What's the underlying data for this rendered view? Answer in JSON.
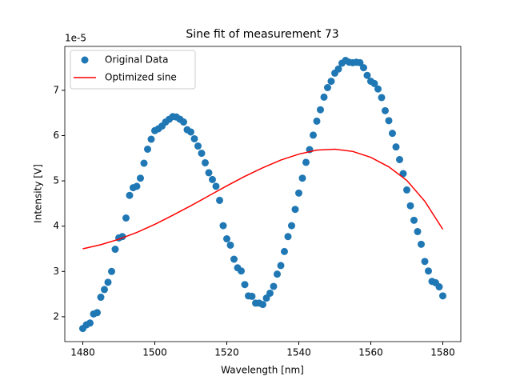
{
  "chart_data": {
    "type": "scatter",
    "title": "Sine fit of measurement 73",
    "xlabel": "Wavelength [nm]",
    "ylabel": "Intensity [V]",
    "offset_text": "1e-5",
    "xlim": [
      1475,
      1585
    ],
    "ylim": [
      1.45,
      7.97
    ],
    "xticks": [
      1480,
      1500,
      1520,
      1540,
      1560,
      1580
    ],
    "yticks": [
      2,
      3,
      4,
      5,
      6,
      7
    ],
    "legend": "upper left",
    "series": [
      {
        "name": "Original Data",
        "type": "scatter",
        "color": "#1f77b4",
        "x": [
          1480,
          1481,
          1482,
          1483,
          1484,
          1485,
          1486,
          1487,
          1488,
          1489,
          1490,
          1491,
          1492,
          1493,
          1494,
          1495,
          1496,
          1497,
          1498,
          1499,
          1500,
          1501,
          1502,
          1503,
          1504,
          1505,
          1506,
          1507,
          1508,
          1509,
          1510,
          1511,
          1512,
          1513,
          1514,
          1515,
          1516,
          1517,
          1518,
          1519,
          1520,
          1521,
          1522,
          1523,
          1524,
          1525,
          1526,
          1527,
          1528,
          1529,
          1530,
          1531,
          1532,
          1533,
          1534,
          1535,
          1536,
          1537,
          1538,
          1539,
          1540,
          1541,
          1542,
          1543,
          1544,
          1545,
          1546,
          1547,
          1548,
          1549,
          1550,
          1551,
          1552,
          1553,
          1554,
          1555,
          1556,
          1557,
          1558,
          1559,
          1560,
          1561,
          1562,
          1563,
          1564,
          1565,
          1566,
          1567,
          1568,
          1569,
          1570,
          1571,
          1572,
          1573,
          1574,
          1575,
          1576,
          1577,
          1578,
          1579,
          1580
        ],
        "values": [
          1.74,
          1.82,
          1.86,
          2.06,
          2.09,
          2.43,
          2.6,
          2.76,
          3.0,
          3.49,
          3.74,
          3.77,
          4.18,
          4.68,
          4.85,
          4.88,
          5.06,
          5.39,
          5.7,
          5.92,
          6.11,
          6.15,
          6.21,
          6.3,
          6.36,
          6.42,
          6.41,
          6.36,
          6.3,
          6.13,
          6.08,
          5.93,
          5.77,
          5.61,
          5.4,
          5.18,
          5.03,
          4.88,
          4.57,
          4.01,
          3.72,
          3.58,
          3.27,
          3.08,
          3.01,
          2.71,
          2.46,
          2.45,
          2.3,
          2.3,
          2.27,
          2.41,
          2.52,
          2.67,
          2.94,
          3.13,
          3.44,
          3.77,
          4.01,
          4.37,
          4.73,
          5.06,
          5.41,
          5.69,
          6.01,
          6.32,
          6.57,
          6.85,
          7.06,
          7.2,
          7.38,
          7.47,
          7.6,
          7.66,
          7.62,
          7.61,
          7.62,
          7.61,
          7.5,
          7.33,
          7.2,
          7.15,
          7.03,
          6.84,
          6.55,
          6.33,
          6.05,
          5.75,
          5.47,
          5.16,
          4.8,
          4.45,
          4.13,
          3.88,
          3.6,
          3.22,
          3.01,
          2.78,
          2.75,
          2.66,
          2.46
        ]
      },
      {
        "name": "Optimized sine",
        "type": "line",
        "color": "#ff0000",
        "x": [
          1480,
          1485,
          1490,
          1495,
          1500,
          1505,
          1510,
          1515,
          1520,
          1525,
          1530,
          1535,
          1540,
          1545,
          1550,
          1555,
          1560,
          1565,
          1570,
          1575,
          1580
        ],
        "values": [
          3.5,
          3.59,
          3.71,
          3.86,
          4.04,
          4.24,
          4.45,
          4.67,
          4.89,
          5.1,
          5.29,
          5.46,
          5.59,
          5.68,
          5.7,
          5.65,
          5.52,
          5.31,
          5.01,
          4.55,
          3.93
        ]
      }
    ]
  }
}
